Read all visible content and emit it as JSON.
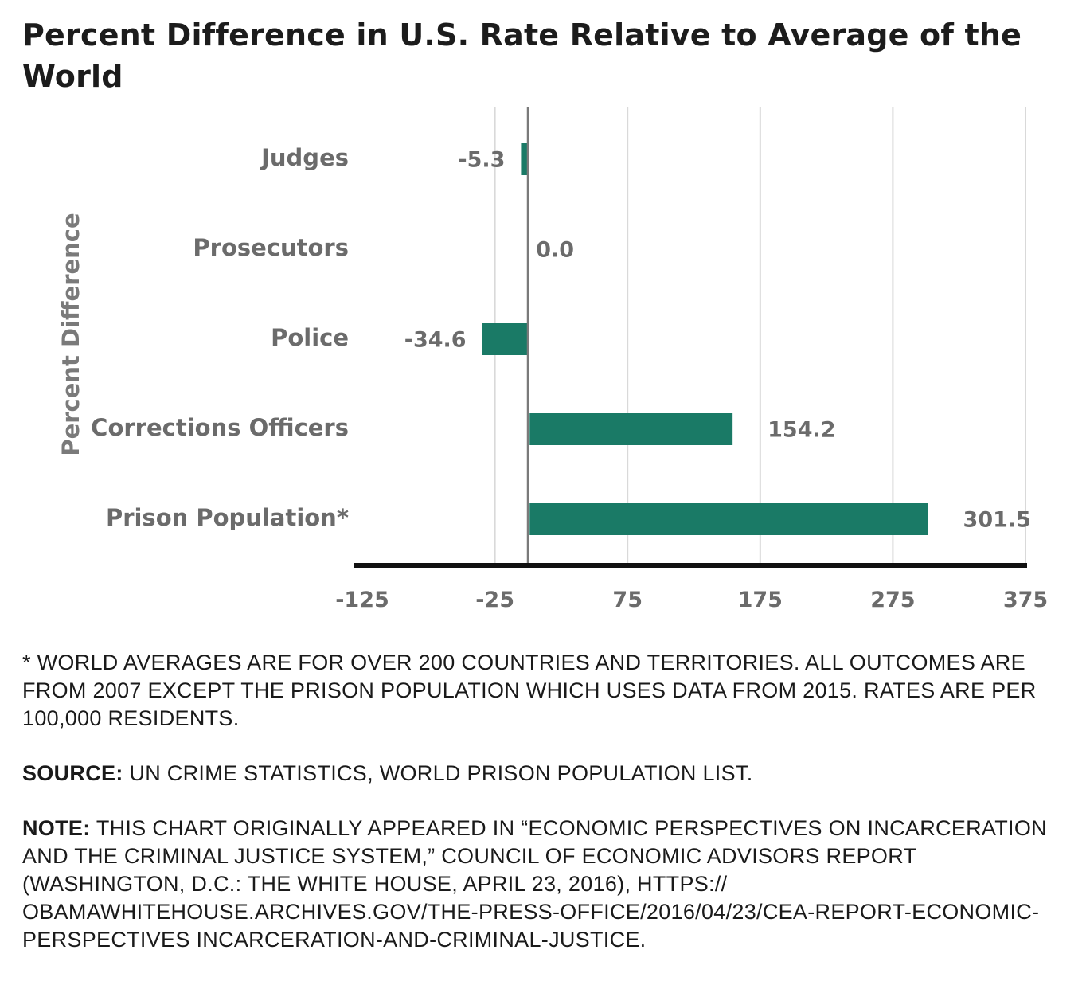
{
  "title": "Percent Difference in U.S. Rate Relative to Average of the World",
  "chart_data": {
    "type": "bar",
    "orientation": "horizontal",
    "categories": [
      "Judges",
      "Prosecutors",
      "Police",
      "Corrections Officers",
      "Prison Population*"
    ],
    "values": [
      -5.3,
      0.0,
      -34.6,
      154.2,
      301.5
    ],
    "value_labels": [
      "-5.3",
      "0.0",
      "-34.6",
      "154.2",
      "301.5"
    ],
    "x_ticks": [
      -125,
      -25,
      75,
      175,
      275,
      375
    ],
    "xlim": [
      -125,
      375
    ],
    "xlabel": "",
    "ylabel": "Percent Difference",
    "grid": true,
    "bar_color": "#1a7a66"
  },
  "notes": {
    "footnote": "* WORLD AVERAGES ARE FOR OVER 200 COUNTRIES AND TERRITORIES. ALL OUTCOMES ARE FROM 2007 EXCEPT THE PRISON POPULATION WHICH USES DATA FROM 2015. RATES ARE PER 100,000 RESIDENTS.",
    "source_label": "SOURCE:",
    "source_text": " UN CRIME STATISTICS, WORLD PRISON POPULATION LIST.",
    "note_label": "NOTE:",
    "note_text": " THIS CHART ORIGINALLY APPEARED IN “ECONOMIC PERSPECTIVES ON INCARCERATION AND THE CRIMINAL JUSTICE SYSTEM,” COUNCIL OF ECONOMIC ADVISORS REPORT (WASHINGTON, D.C.: THE WHITE HOUSE, APRIL 23, 2016), HTTPS:// OBAMAWHITEHOUSE.ARCHIVES.GOV/THE-PRESS-OFFICE/2016/04/23/CEA-REPORT-ECONOMIC-PERSPECTIVES INCARCERATION-AND-CRIMINAL-JUSTICE."
  }
}
